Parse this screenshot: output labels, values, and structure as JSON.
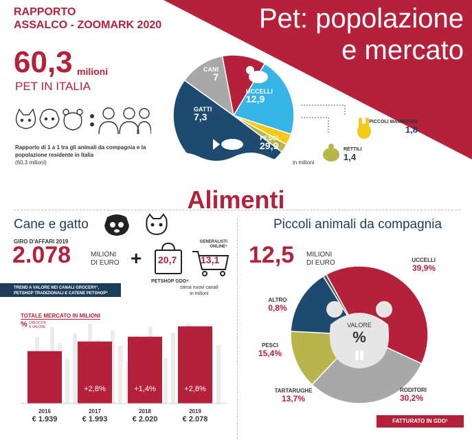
{
  "header": {
    "report_line1": "RAPPORTO",
    "report_line2": "ASSALCO - ZOOMARK 2020",
    "title_line1": "Pet: popolazione",
    "title_line2": "e mercato"
  },
  "pets": {
    "total": "60,3",
    "total_unit": "milioni",
    "subtitle": "PET IN ITALIA",
    "ratio_bold": "Rapporto di 1 a 1 tra gli animali da compagnia e la popolazione residente in Italia",
    "ratio_note": "(60,3 milioni)",
    "unit_note": "in milioni",
    "chart_data": {
      "type": "pie",
      "title": "",
      "unit": "milioni",
      "slices": [
        {
          "label": "CANI",
          "value": 7,
          "display": "7",
          "color": "#b5203a"
        },
        {
          "label": "UCCELLI",
          "value": 12.9,
          "display": "12,9",
          "color": "#36b4e5"
        },
        {
          "label": "PICCOLI MAMMIFERI",
          "value": 1.8,
          "display": "1,8",
          "color": "#f6c917"
        },
        {
          "label": "RETTILI",
          "value": 1.4,
          "display": "1,4",
          "color": "#b6b64d"
        },
        {
          "label": "PESCI",
          "value": 29.9,
          "display": "29,9",
          "color": "#1d4a6e"
        },
        {
          "label": "GATTI",
          "value": 7.3,
          "display": "7,3",
          "color": "#a8a8a8"
        }
      ]
    }
  },
  "alimenti": {
    "title": "Alimenti",
    "cane_gatto": {
      "title": "Cane e gatto",
      "giro_label": "GIRO D'AFFARI 2019",
      "giro_value": "2.078",
      "giro_unit_line1": "MILIONI",
      "giro_unit_line2": "DI EURO",
      "plus": "+",
      "petshop_value": "20,7",
      "petshop_label": "PETSHOP GDO⁴",
      "online_label_line1": "GENERALISTI",
      "online_label_line2": "ONLINE⁵",
      "online_value": "13,1",
      "online_note_line1": "stima nuovi canali",
      "online_note_line2": "in milioni",
      "trend_line1": "TREND A VALORE NEI CANALI GROCERY¹,",
      "trend_line2": "PETSHOP TRADIZIONALI E CATENE PETSHOP³",
      "chart_title": "TOTALE MERCATO IN MILIONI",
      "chart_legend_symbol": "%",
      "chart_legend_text_line1": "CRESCITA",
      "chart_legend_text_line2": "A VALORE",
      "chart_data": {
        "type": "bar",
        "title": "TOTALE MERCATO IN MILIONI",
        "categories": [
          "2016",
          "2017",
          "2018",
          "2019"
        ],
        "values": [
          1939,
          1993,
          2020,
          2078
        ],
        "value_labels": [
          "€ 1.939",
          "€ 1.993",
          "€ 2.020",
          "€ 2.078"
        ],
        "growth_labels": [
          "",
          "+2,8%",
          "+1,4%",
          "+2,8%"
        ],
        "color": "#b5203a"
      }
    },
    "piccoli": {
      "title": "Piccoli animali da compagnia",
      "value": "12,5",
      "unit_line1": "MILIONI",
      "unit_line2": "DI EURO",
      "center_label": "VALORE",
      "center_symbol": "%",
      "footer": "FATTURATO IN GDO¹",
      "chart_data": {
        "type": "pie",
        "title": "",
        "unit": "%",
        "slices": [
          {
            "label": "UCCELLI",
            "value": 39.9,
            "display": "39,9%",
            "color": "#b5203a"
          },
          {
            "label": "RODITORI",
            "value": 30.2,
            "display": "30,2%",
            "color": "#a8a8a8"
          },
          {
            "label": "TARTARUGHE",
            "value": 13.7,
            "display": "13,7%",
            "color": "#b6b64d"
          },
          {
            "label": "PESCI",
            "value": 15.4,
            "display": "15,4%",
            "color": "#1d4a6e"
          },
          {
            "label": "ALTRO",
            "value": 0.8,
            "display": "0,8%",
            "color": "#555555"
          }
        ]
      }
    }
  },
  "icons": [
    "dog-icon",
    "cat-icon",
    "hamster-icon",
    "person-icon",
    "bird-icon",
    "fish-icon",
    "rabbit-icon",
    "turtle-icon",
    "shopping-bag-icon",
    "shopping-cart-icon"
  ]
}
